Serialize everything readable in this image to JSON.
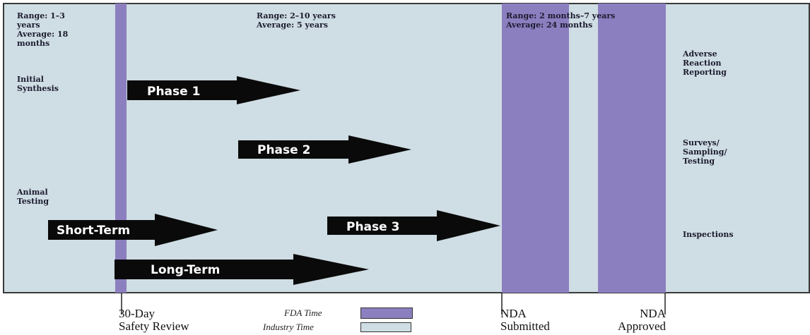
{
  "colors": {
    "industry_time": "#cfdde4",
    "fda_time": "#8c7fc0",
    "arrow": "#0a0a0a",
    "arrow_text": "#ffffff"
  },
  "annotations": {
    "preclinical_range": [
      "Range: 1–3",
      "years",
      "Average: 18",
      "months"
    ],
    "clinical_range": [
      "Range: 2–10 years",
      "Average: 5 years"
    ],
    "review_range": [
      "Range: 2 months–7 years",
      "Average: 24 months"
    ],
    "initial_synthesis": [
      "Initial",
      "Synthesis"
    ],
    "animal_testing": [
      "Animal",
      "Testing"
    ],
    "adverse_reaction": [
      "Adverse",
      "Reaction",
      "Reporting"
    ],
    "surveys": [
      "Surveys/",
      "Sampling/",
      "Testing"
    ],
    "inspections": [
      "Inspections"
    ]
  },
  "arrows": {
    "phase1": "Phase 1",
    "phase2": "Phase 2",
    "phase3": "Phase 3",
    "short_term": "Short-Term",
    "long_term": "Long-Term"
  },
  "milestones": {
    "safety_review": [
      "30-Day",
      "Safety Review"
    ],
    "nda_submitted": [
      "NDA",
      "Submitted"
    ],
    "nda_approved": [
      "NDA",
      "Approved"
    ]
  },
  "legend": {
    "fda_time": "FDA Time",
    "industry_time": "Industry Time"
  }
}
